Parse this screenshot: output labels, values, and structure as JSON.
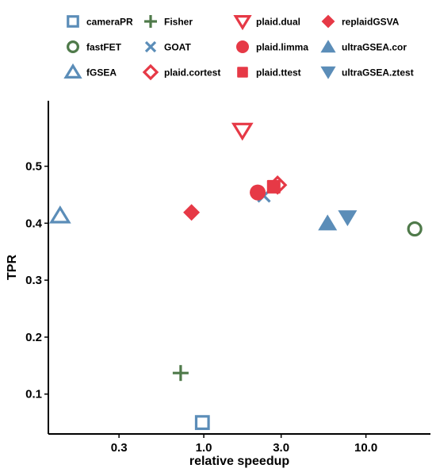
{
  "chart_data": {
    "type": "scatter",
    "xlabel": "relative speedup",
    "ylabel": "TPR",
    "x_scale": "log",
    "xlim": [
      0.11,
      25
    ],
    "ylim": [
      0.03,
      0.615
    ],
    "xticks": [
      0.3,
      1.0,
      3.0,
      10.0
    ],
    "xtick_labels": [
      "0.3",
      "1.0",
      "3.0",
      "10.0"
    ],
    "yticks": [
      0.1,
      0.2,
      0.3,
      0.4,
      0.5
    ],
    "ytick_labels": [
      "0.1",
      "0.2",
      "0.3",
      "0.4",
      "0.5"
    ],
    "grid": false,
    "legend_position": "top",
    "series": [
      {
        "name": "cameraPR",
        "x": 0.98,
        "y": 0.05,
        "color": "#5b8db8",
        "shape": "square-open"
      },
      {
        "name": "fastFET",
        "x": 20.0,
        "y": 0.39,
        "color": "#4f7a4a",
        "shape": "circle-open"
      },
      {
        "name": "fGSEA",
        "x": 0.13,
        "y": 0.413,
        "color": "#5b8db8",
        "shape": "triangle-up-open"
      },
      {
        "name": "Fisher",
        "x": 0.72,
        "y": 0.137,
        "color": "#4f7a4a",
        "shape": "plus"
      },
      {
        "name": "GOAT",
        "x": 2.35,
        "y": 0.448,
        "color": "#5b8db8",
        "shape": "cross"
      },
      {
        "name": "plaid.cortest",
        "x": 2.85,
        "y": 0.467,
        "color": "#e63946",
        "shape": "diamond-open"
      },
      {
        "name": "plaid.dual",
        "x": 1.73,
        "y": 0.563,
        "color": "#e63946",
        "shape": "triangle-down-open"
      },
      {
        "name": "plaid.limma",
        "x": 2.15,
        "y": 0.454,
        "color": "#e63946",
        "shape": "circle"
      },
      {
        "name": "plaid.ttest",
        "x": 2.7,
        "y": 0.464,
        "color": "#e63946",
        "shape": "square"
      },
      {
        "name": "replaidGSVA",
        "x": 0.84,
        "y": 0.419,
        "color": "#e63946",
        "shape": "diamond"
      },
      {
        "name": "ultraGSEA.cor",
        "x": 5.8,
        "y": 0.4,
        "color": "#5b8db8",
        "shape": "triangle-up"
      },
      {
        "name": "ultraGSEA.ztest",
        "x": 7.7,
        "y": 0.41,
        "color": "#5b8db8",
        "shape": "triangle-down"
      }
    ]
  }
}
